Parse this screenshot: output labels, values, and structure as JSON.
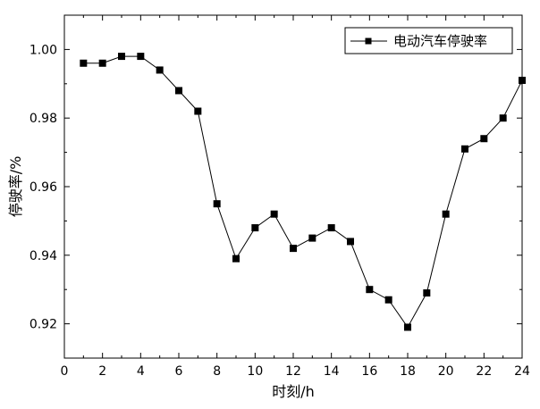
{
  "chart_data": {
    "type": "line",
    "xlabel": "时刻/h",
    "ylabel": "停驶率/%",
    "xlim": [
      0,
      24
    ],
    "ylim": [
      0.91,
      1.01
    ],
    "x_ticks": [
      "0",
      "2",
      "4",
      "6",
      "8",
      "10",
      "12",
      "14",
      "16",
      "18",
      "20",
      "22",
      "24"
    ],
    "y_ticks": [
      "0.92",
      "0.94",
      "0.96",
      "0.98",
      "1.00"
    ],
    "grid": false,
    "legend_position": "top-right",
    "series": [
      {
        "name": "电动汽车停驶率",
        "marker": "square",
        "color": "#000000",
        "x": [
          1,
          2,
          3,
          4,
          5,
          6,
          7,
          8,
          9,
          10,
          11,
          12,
          13,
          14,
          15,
          16,
          17,
          18,
          19,
          20,
          21,
          22,
          23,
          24
        ],
        "y": [
          0.996,
          0.996,
          0.998,
          0.998,
          0.994,
          0.988,
          0.982,
          0.955,
          0.939,
          0.948,
          0.952,
          0.942,
          0.945,
          0.948,
          0.944,
          0.93,
          0.927,
          0.919,
          0.929,
          0.952,
          0.971,
          0.974,
          0.98,
          0.991
        ]
      }
    ]
  }
}
